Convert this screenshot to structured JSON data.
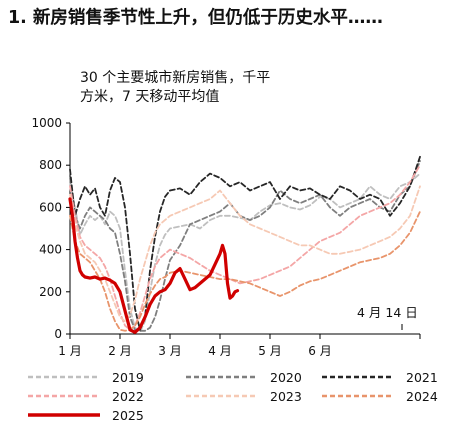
{
  "header": {
    "title": "1. 新房销售季节性上升，但仍低于历史水平……"
  },
  "chart_data": {
    "type": "line",
    "title": "30 个主要城市新房销售，千平\n方米，7 天移动平均值",
    "xlabel": "",
    "ylabel": "",
    "ylim": [
      0,
      1000
    ],
    "yticks": [
      0,
      200,
      400,
      600,
      800,
      1000
    ],
    "xlim": [
      0,
      7
    ],
    "xticks": [
      {
        "pos": 0,
        "label": "1 月"
      },
      {
        "pos": 1,
        "label": "2 月"
      },
      {
        "pos": 2,
        "label": "3 月"
      },
      {
        "pos": 3,
        "label": "4 月"
      },
      {
        "pos": 4,
        "label": "5 月"
      },
      {
        "pos": 5,
        "label": "6 月"
      }
    ],
    "grid": false,
    "annotation": "4 月 14 日",
    "legend_position": "bottom",
    "series": [
      {
        "name": "2019",
        "color": "#bfbfbf",
        "style": "dashed",
        "width": 1.8,
        "x": [
          0,
          0.1,
          0.2,
          0.3,
          0.4,
          0.5,
          0.6,
          0.7,
          0.8,
          0.9,
          1.0,
          1.1,
          1.2,
          1.3,
          1.4,
          1.5,
          1.6,
          1.7,
          1.8,
          1.9,
          2.0,
          2.2,
          2.4,
          2.6,
          2.8,
          3.0,
          3.2,
          3.4,
          3.6,
          3.8,
          4.0,
          4.2,
          4.4,
          4.6,
          4.8,
          5.0,
          5.2,
          5.4,
          5.6,
          5.8,
          6.0,
          6.2,
          6.4,
          6.6,
          6.8,
          7.0
        ],
        "y": [
          720,
          600,
          470,
          520,
          560,
          540,
          560,
          520,
          580,
          560,
          500,
          300,
          120,
          30,
          10,
          60,
          200,
          330,
          420,
          470,
          500,
          510,
          520,
          500,
          540,
          560,
          560,
          550,
          540,
          580,
          610,
          620,
          600,
          590,
          610,
          650,
          640,
          600,
          620,
          640,
          700,
          660,
          640,
          700,
          720,
          760
        ]
      },
      {
        "name": "2020",
        "color": "#7f7f7f",
        "style": "dashed",
        "width": 1.8,
        "x": [
          0,
          0.1,
          0.2,
          0.3,
          0.4,
          0.5,
          0.6,
          0.7,
          0.8,
          0.9,
          1.0,
          1.1,
          1.2,
          1.3,
          1.4,
          1.5,
          1.6,
          1.7,
          1.8,
          1.9,
          2.0,
          2.2,
          2.4,
          2.6,
          2.8,
          3.0,
          3.2,
          3.4,
          3.6,
          3.8,
          4.0,
          4.2,
          4.4,
          4.6,
          4.8,
          5.0,
          5.2,
          5.4,
          5.6,
          5.8,
          6.0,
          6.2,
          6.4,
          6.6,
          6.8,
          7.0
        ],
        "y": [
          740,
          560,
          500,
          560,
          600,
          580,
          560,
          540,
          500,
          480,
          380,
          250,
          80,
          20,
          15,
          15,
          30,
          80,
          160,
          260,
          350,
          420,
          520,
          540,
          560,
          580,
          620,
          560,
          540,
          560,
          600,
          680,
          640,
          620,
          640,
          660,
          600,
          560,
          600,
          620,
          640,
          600,
          580,
          660,
          700,
          820
        ]
      },
      {
        "name": "2021",
        "color": "#262626",
        "style": "dashed",
        "width": 1.8,
        "x": [
          0,
          0.1,
          0.2,
          0.3,
          0.4,
          0.5,
          0.6,
          0.7,
          0.8,
          0.9,
          1.0,
          1.1,
          1.2,
          1.3,
          1.4,
          1.5,
          1.6,
          1.7,
          1.8,
          1.9,
          2.0,
          2.2,
          2.4,
          2.6,
          2.8,
          3.0,
          3.2,
          3.4,
          3.6,
          3.8,
          4.0,
          4.2,
          4.4,
          4.6,
          4.8,
          5.0,
          5.2,
          5.4,
          5.6,
          5.8,
          6.0,
          6.2,
          6.4,
          6.6,
          6.8,
          7.0
        ],
        "y": [
          780,
          560,
          640,
          700,
          660,
          690,
          600,
          560,
          680,
          740,
          720,
          600,
          380,
          120,
          20,
          80,
          300,
          460,
          580,
          650,
          680,
          690,
          660,
          720,
          760,
          740,
          700,
          720,
          680,
          700,
          720,
          640,
          700,
          680,
          690,
          660,
          640,
          700,
          680,
          640,
          660,
          640,
          560,
          620,
          700,
          840
        ]
      },
      {
        "name": "2022",
        "color": "#f4a6a6",
        "style": "dashed",
        "width": 1.8,
        "x": [
          0,
          0.1,
          0.2,
          0.3,
          0.4,
          0.5,
          0.6,
          0.7,
          0.8,
          0.9,
          1.0,
          1.1,
          1.2,
          1.3,
          1.4,
          1.5,
          1.6,
          1.7,
          1.8,
          1.9,
          2.0,
          2.2,
          2.4,
          2.6,
          2.8,
          3.0,
          3.2,
          3.4,
          3.6,
          3.8,
          4.0,
          4.2,
          4.4,
          4.6,
          4.8,
          5.0,
          5.2,
          5.4,
          5.6,
          5.8,
          6.0,
          6.2,
          6.4,
          6.6,
          6.8,
          7.0
        ],
        "y": [
          700,
          560,
          460,
          420,
          400,
          380,
          360,
          320,
          260,
          180,
          100,
          40,
          20,
          40,
          100,
          180,
          260,
          320,
          360,
          380,
          400,
          380,
          360,
          330,
          300,
          280,
          260,
          240,
          250,
          260,
          280,
          300,
          320,
          360,
          400,
          440,
          460,
          480,
          520,
          560,
          580,
          600,
          620,
          660,
          720,
          800
        ]
      },
      {
        "name": "2023",
        "color": "#f6c9b4",
        "style": "dashed",
        "width": 1.8,
        "x": [
          0,
          0.1,
          0.2,
          0.3,
          0.4,
          0.5,
          0.6,
          0.7,
          0.8,
          0.9,
          1.0,
          1.1,
          1.2,
          1.3,
          1.4,
          1.5,
          1.6,
          1.7,
          1.8,
          1.9,
          2.0,
          2.2,
          2.4,
          2.6,
          2.8,
          3.0,
          3.2,
          3.4,
          3.6,
          3.8,
          4.0,
          4.2,
          4.4,
          4.6,
          4.8,
          5.0,
          5.2,
          5.4,
          5.6,
          5.8,
          6.0,
          6.2,
          6.4,
          6.6,
          6.8,
          7.0
        ],
        "y": [
          660,
          520,
          440,
          380,
          360,
          340,
          300,
          260,
          200,
          140,
          80,
          60,
          90,
          160,
          260,
          340,
          420,
          480,
          520,
          540,
          560,
          580,
          600,
          620,
          640,
          680,
          620,
          560,
          520,
          500,
          480,
          460,
          440,
          420,
          420,
          400,
          380,
          380,
          390,
          400,
          420,
          440,
          460,
          500,
          560,
          700
        ]
      },
      {
        "name": "2024",
        "color": "#e8946b",
        "style": "dashed",
        "width": 1.8,
        "x": [
          0,
          0.1,
          0.2,
          0.3,
          0.4,
          0.5,
          0.6,
          0.7,
          0.8,
          0.9,
          1.0,
          1.1,
          1.2,
          1.3,
          1.4,
          1.5,
          1.6,
          1.7,
          1.8,
          1.9,
          2.0,
          2.2,
          2.4,
          2.6,
          2.8,
          3.0,
          3.2,
          3.4,
          3.6,
          3.8,
          4.0,
          4.2,
          4.4,
          4.6,
          4.8,
          5.0,
          5.2,
          5.4,
          5.6,
          5.8,
          6.0,
          6.2,
          6.4,
          6.6,
          6.8,
          7.0
        ],
        "y": [
          560,
          440,
          380,
          360,
          340,
          300,
          260,
          200,
          120,
          60,
          20,
          15,
          20,
          40,
          80,
          140,
          190,
          230,
          260,
          270,
          290,
          300,
          290,
          280,
          270,
          260,
          260,
          250,
          240,
          220,
          200,
          180,
          200,
          230,
          250,
          260,
          280,
          300,
          320,
          340,
          350,
          360,
          380,
          420,
          480,
          580
        ]
      },
      {
        "name": "2025",
        "color": "#d00000",
        "style": "solid",
        "width": 3.2,
        "x": [
          0,
          0.05,
          0.1,
          0.15,
          0.2,
          0.25,
          0.3,
          0.4,
          0.5,
          0.6,
          0.7,
          0.8,
          0.9,
          1.0,
          1.1,
          1.2,
          1.3,
          1.4,
          1.5,
          1.6,
          1.7,
          1.8,
          1.9,
          2.0,
          2.1,
          2.2,
          2.3,
          2.4,
          2.5,
          2.6,
          2.7,
          2.8,
          2.9,
          3.0,
          3.05,
          3.1,
          3.15,
          3.2,
          3.25,
          3.3,
          3.35
        ],
        "y": [
          640,
          560,
          440,
          360,
          300,
          280,
          270,
          265,
          270,
          260,
          265,
          255,
          240,
          200,
          110,
          20,
          8,
          30,
          80,
          140,
          180,
          200,
          210,
          240,
          290,
          310,
          260,
          210,
          220,
          240,
          260,
          280,
          330,
          380,
          420,
          380,
          240,
          170,
          180,
          200,
          205
        ]
      }
    ]
  }
}
